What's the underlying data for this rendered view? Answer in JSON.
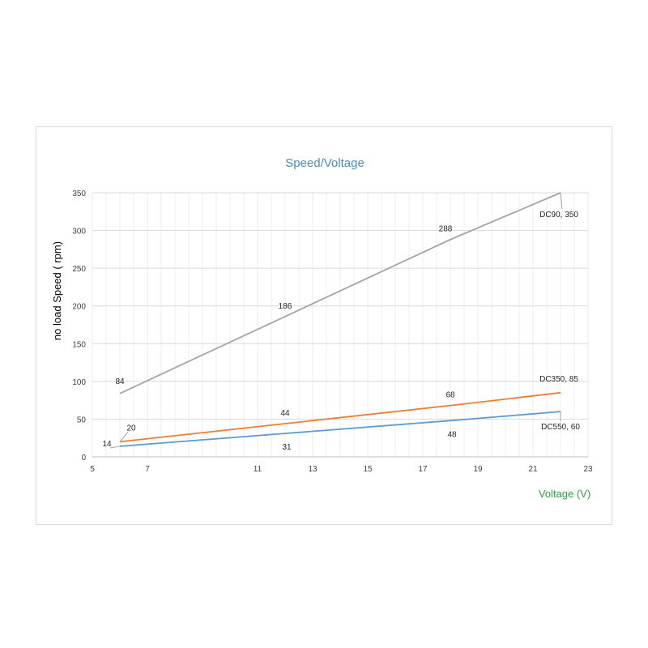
{
  "chart_data": {
    "type": "line",
    "title": "Speed/Voltage",
    "xlabel": "Voltage (V)",
    "ylabel": "no load Speed ( rpm)",
    "xlim": [
      5,
      23
    ],
    "ylim": [
      0,
      350
    ],
    "x_ticks": [
      5,
      7,
      11,
      13,
      15,
      17,
      19,
      21,
      23
    ],
    "y_ticks": [
      0,
      50,
      100,
      150,
      200,
      250,
      300,
      350
    ],
    "x_minor_step": 0.5,
    "grid": true,
    "series": [
      {
        "color": "#a5a5a5",
        "points": [
          [
            6,
            84
          ],
          [
            12,
            186
          ],
          [
            18,
            288
          ],
          [
            22,
            350
          ]
        ],
        "labels": [
          "84",
          "186",
          "288",
          "DC90, 350"
        ]
      },
      {
        "color": "#ed7d31",
        "points": [
          [
            6,
            20
          ],
          [
            12,
            44
          ],
          [
            18,
            68
          ],
          [
            22,
            85
          ]
        ],
        "labels": [
          "20",
          "44",
          "68",
          "DC350, 85"
        ]
      },
      {
        "color": "#5b9bd5",
        "points": [
          [
            6,
            14
          ],
          [
            12,
            31
          ],
          [
            18,
            48
          ],
          [
            22,
            60
          ]
        ],
        "labels": [
          "14",
          "31",
          "48",
          "DC550, 60"
        ]
      }
    ],
    "title_color": "#4a8ec4",
    "xlabel_color": "#2e9e48",
    "ylabel_color": "#000000"
  }
}
